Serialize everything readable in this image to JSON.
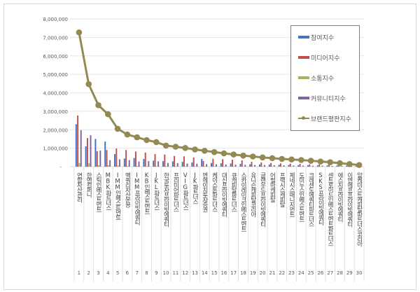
{
  "chart_data": {
    "type": "bar",
    "title": "",
    "xlabel": "",
    "ylabel": "",
    "ylim": [
      0,
      8000000
    ],
    "yticks": [
      "-",
      "1,000,000",
      "2,000,000",
      "3,000,000",
      "4,000,000",
      "5,000,000",
      "6,000,000",
      "7,000,000",
      "8,000,000"
    ],
    "grid": true,
    "legend_position": "upper-right",
    "ranks": [
      "1",
      "2",
      "3",
      "4",
      "5",
      "6",
      "7",
      "8",
      "9",
      "10",
      "11",
      "12",
      "13",
      "14",
      "15",
      "16",
      "17",
      "18",
      "19",
      "20",
      "21",
      "22",
      "23",
      "24",
      "25",
      "26",
      "27",
      "28",
      "29",
      "30"
    ],
    "categories": [
      "연합자산관리",
      "한앤컴퍼니",
      "스틱인베스트먼트",
      "MBK파트너스",
      "IMM인베스트먼트",
      "맥쿼리자산운용",
      "IMM프라이빗에쿼티",
      "KB인베스트먼트",
      "JKL파트너스",
      "한국투자프라이빗에쿼티",
      "프리미어파트너스",
      "VIG파트너스",
      "JK파트너스",
      "엔에이치투자증권",
      "케이스톤파트너스",
      "대신프라이빗에쿼티",
      "큐캐피탈파트너스",
      "스카이레이크인베스트먼트",
      "유니슨캐피탈코리아",
      "글랜우드프라이빗에쿼티",
      "어펄마캐피탈",
      "프랙시스캐피탈",
      "제네시스매니지먼트",
      "도미누스인베스트먼트",
      "크레센도에쿼티파트너스",
      "SKS프라이빗에쿼티",
      "센트로이드인베스트먼트파트너스",
      "에스지프라이빗에쿼티",
      "이엔에프프라이빗에쿼티",
      "알케미스트캐피탈파트너스코리아"
    ],
    "series": [
      {
        "name": "참여지수",
        "kind": "bar",
        "color": "#4472c4",
        "values": [
          2300000,
          1100000,
          1500000,
          1360000,
          680000,
          440000,
          470000,
          420000,
          330000,
          300000,
          290000,
          260000,
          230000,
          420000,
          200000,
          180000,
          170000,
          150000,
          130000,
          120000,
          110000,
          100000,
          90000,
          80000,
          80000,
          70000,
          70000,
          60000,
          60000,
          50000
        ]
      },
      {
        "name": "미디어지수",
        "kind": "bar",
        "color": "#c0504d",
        "values": [
          2770000,
          1550000,
          830000,
          900000,
          980000,
          900000,
          820000,
          760000,
          680000,
          660000,
          580000,
          560000,
          500000,
          310000,
          430000,
          400000,
          380000,
          340000,
          260000,
          230000,
          200000,
          180000,
          160000,
          150000,
          130000,
          120000,
          110000,
          100000,
          90000,
          80000
        ]
      },
      {
        "name": "소통지수",
        "kind": "bar",
        "color": "#9bbb59",
        "values": [
          200000,
          180000,
          80000,
          80000,
          60000,
          40000,
          40000,
          30000,
          30000,
          30000,
          20000,
          20000,
          20000,
          20000,
          20000,
          20000,
          20000,
          10000,
          10000,
          10000,
          10000,
          10000,
          10000,
          10000,
          10000,
          10000,
          10000,
          10000,
          10000,
          10000
        ]
      },
      {
        "name": "커뮤니티지수",
        "kind": "bar",
        "color": "#8064a2",
        "values": [
          1970000,
          1700000,
          870000,
          350000,
          400000,
          360000,
          280000,
          300000,
          290000,
          200000,
          190000,
          170000,
          160000,
          140000,
          130000,
          120000,
          110000,
          100000,
          90000,
          90000,
          80000,
          70000,
          60000,
          60000,
          50000,
          50000,
          40000,
          40000,
          40000,
          30000
        ]
      },
      {
        "name": "브랜드평판지수",
        "kind": "line",
        "color": "#938953",
        "values": [
          7270000,
          4470000,
          3330000,
          2840000,
          2050000,
          1740000,
          1590000,
          1440000,
          1330000,
          1140000,
          1080000,
          1010000,
          930000,
          860000,
          790000,
          720000,
          660000,
          600000,
          550000,
          500000,
          460000,
          420000,
          390000,
          360000,
          320000,
          280000,
          240000,
          190000,
          140000,
          90000
        ]
      }
    ]
  }
}
